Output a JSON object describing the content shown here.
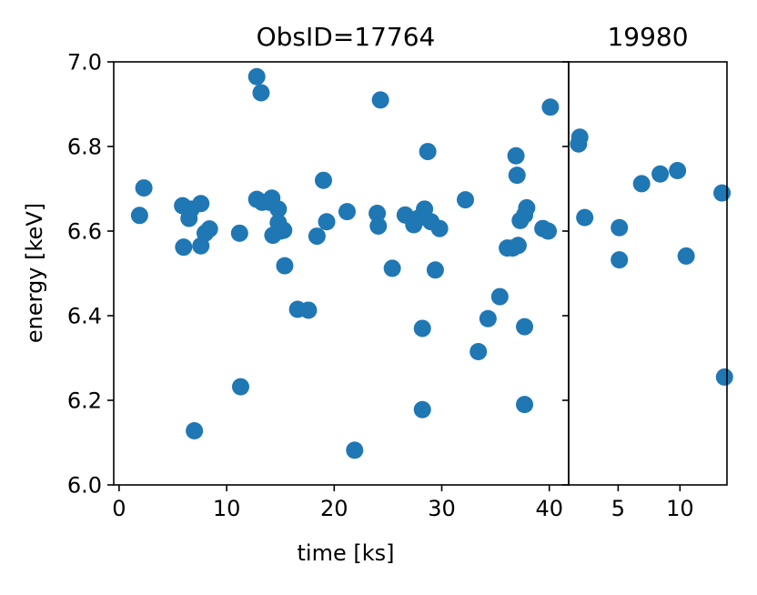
{
  "chart_data": [
    {
      "type": "scatter",
      "title": "ObsID=17764",
      "xlabel": "time [ks]",
      "ylabel": "energy [keV]",
      "xlim": [
        -0.5,
        41.8
      ],
      "ylim": [
        6.0,
        7.0
      ],
      "xticks": [
        0,
        10,
        20,
        30,
        40
      ],
      "yticks": [
        6.0,
        6.2,
        6.4,
        6.6,
        6.8,
        7.0
      ],
      "ytick_labels": [
        "6.0",
        "6.2",
        "6.4",
        "6.6",
        "6.8",
        "7.0"
      ],
      "grid": false,
      "marker_color": "#1f77b4",
      "points": [
        {
          "x": 1.9,
          "y": 6.637
        },
        {
          "x": 2.3,
          "y": 6.702
        },
        {
          "x": 5.9,
          "y": 6.66
        },
        {
          "x": 6.0,
          "y": 6.562
        },
        {
          "x": 6.5,
          "y": 6.63
        },
        {
          "x": 6.7,
          "y": 6.652
        },
        {
          "x": 7.0,
          "y": 6.128
        },
        {
          "x": 7.6,
          "y": 6.665
        },
        {
          "x": 7.6,
          "y": 6.565
        },
        {
          "x": 8.0,
          "y": 6.595
        },
        {
          "x": 8.4,
          "y": 6.605
        },
        {
          "x": 11.2,
          "y": 6.595
        },
        {
          "x": 11.3,
          "y": 6.232
        },
        {
          "x": 12.8,
          "y": 6.965
        },
        {
          "x": 12.8,
          "y": 6.675
        },
        {
          "x": 13.2,
          "y": 6.927
        },
        {
          "x": 13.3,
          "y": 6.668
        },
        {
          "x": 14.0,
          "y": 6.668
        },
        {
          "x": 14.2,
          "y": 6.678
        },
        {
          "x": 14.3,
          "y": 6.59
        },
        {
          "x": 14.8,
          "y": 6.652
        },
        {
          "x": 14.8,
          "y": 6.62
        },
        {
          "x": 15.0,
          "y": 6.6
        },
        {
          "x": 15.3,
          "y": 6.602
        },
        {
          "x": 15.4,
          "y": 6.518
        },
        {
          "x": 16.6,
          "y": 6.415
        },
        {
          "x": 17.6,
          "y": 6.413
        },
        {
          "x": 18.4,
          "y": 6.588
        },
        {
          "x": 19.0,
          "y": 6.72
        },
        {
          "x": 19.3,
          "y": 6.622
        },
        {
          "x": 21.2,
          "y": 6.646
        },
        {
          "x": 21.9,
          "y": 6.082
        },
        {
          "x": 24.0,
          "y": 6.642
        },
        {
          "x": 24.1,
          "y": 6.612
        },
        {
          "x": 24.3,
          "y": 6.91
        },
        {
          "x": 25.4,
          "y": 6.512
        },
        {
          "x": 26.6,
          "y": 6.638
        },
        {
          "x": 27.4,
          "y": 6.615
        },
        {
          "x": 27.8,
          "y": 6.63
        },
        {
          "x": 28.2,
          "y": 6.37
        },
        {
          "x": 28.2,
          "y": 6.178
        },
        {
          "x": 28.4,
          "y": 6.652
        },
        {
          "x": 28.7,
          "y": 6.788
        },
        {
          "x": 29.0,
          "y": 6.622
        },
        {
          "x": 29.4,
          "y": 6.508
        },
        {
          "x": 29.8,
          "y": 6.606
        },
        {
          "x": 32.2,
          "y": 6.674
        },
        {
          "x": 33.4,
          "y": 6.315
        },
        {
          "x": 34.3,
          "y": 6.393
        },
        {
          "x": 35.4,
          "y": 6.445
        },
        {
          "x": 36.1,
          "y": 6.56
        },
        {
          "x": 36.6,
          "y": 6.56
        },
        {
          "x": 36.9,
          "y": 6.778
        },
        {
          "x": 37.0,
          "y": 6.732
        },
        {
          "x": 37.1,
          "y": 6.566
        },
        {
          "x": 37.3,
          "y": 6.625
        },
        {
          "x": 37.7,
          "y": 6.638
        },
        {
          "x": 37.7,
          "y": 6.374
        },
        {
          "x": 37.7,
          "y": 6.19
        },
        {
          "x": 37.9,
          "y": 6.655
        },
        {
          "x": 39.4,
          "y": 6.606
        },
        {
          "x": 39.9,
          "y": 6.6
        },
        {
          "x": 40.1,
          "y": 6.893
        }
      ]
    },
    {
      "type": "scatter",
      "title": "19980",
      "xlabel": "",
      "ylabel": "",
      "xlim": [
        1.0,
        13.8
      ],
      "ylim": [
        6.0,
        7.0
      ],
      "xticks": [
        5,
        10
      ],
      "yticks": [
        6.0,
        6.2,
        6.4,
        6.6,
        6.8,
        7.0
      ],
      "grid": false,
      "marker_color": "#1f77b4",
      "points": [
        {
          "x": 1.8,
          "y": 6.806
        },
        {
          "x": 1.9,
          "y": 6.822
        },
        {
          "x": 2.3,
          "y": 6.632
        },
        {
          "x": 5.1,
          "y": 6.608
        },
        {
          "x": 5.1,
          "y": 6.532
        },
        {
          "x": 6.9,
          "y": 6.712
        },
        {
          "x": 8.4,
          "y": 6.735
        },
        {
          "x": 9.8,
          "y": 6.743
        },
        {
          "x": 10.5,
          "y": 6.541
        },
        {
          "x": 13.4,
          "y": 6.69
        },
        {
          "x": 13.6,
          "y": 6.255
        }
      ]
    }
  ]
}
